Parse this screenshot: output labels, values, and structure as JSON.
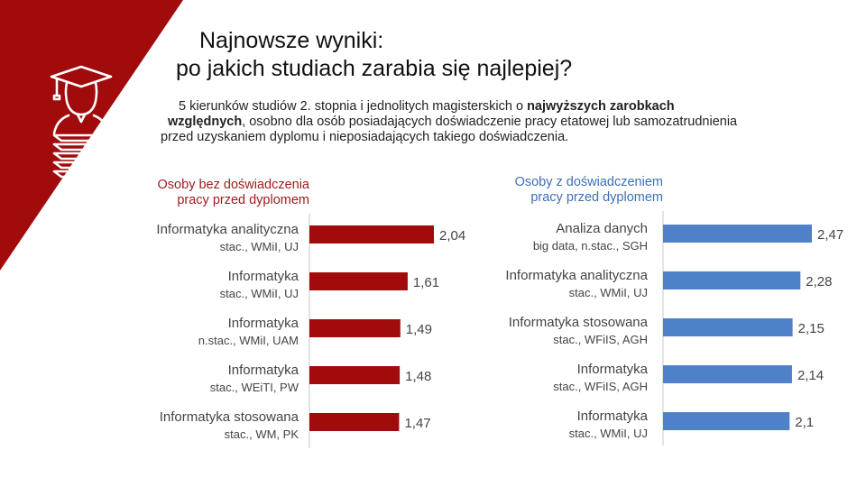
{
  "title": {
    "line1": "Najnowsze wyniki:",
    "line2": "po jakich studiach zarabia się najlepiej?"
  },
  "subtitle": {
    "line1_pre": "5 kierunków studiów 2. stopnia i jednolitych magisterskich o ",
    "line1_bold": "najwyższych zarobkach",
    "line2_bold": "względnych",
    "line2_post": ", osobno dla osób posiadających doświadczenie pracy etatowej lub samozatrudnienia",
    "line3": "przed uzyskaniem dyplomu i nieposiadających takiego doświadczenia."
  },
  "colors": {
    "brand_red": "#a10b0b",
    "bar_red": "#a10b0b",
    "bar_blue": "#4f81c8",
    "label_red": "#9e1a1a",
    "label_blue": "#3e6fb3"
  },
  "icons": [
    "graduate-icon"
  ],
  "chart_data": [
    {
      "type": "bar",
      "orientation": "horizontal",
      "title_line1": "Osoby bez doświadczenia",
      "title_line2": "pracy przed dyplomem",
      "categories": [
        "Informatyka analityczna",
        "Informatyka",
        "Informatyka",
        "Informatyka",
        "Informatyka stosowana"
      ],
      "details": [
        "stac., WMiI, UJ",
        "stac., WMiI, UJ",
        "n.stac., WMiI, UAM",
        "stac., WEiTI, PW",
        "stac., WM, PK"
      ],
      "values": [
        2.04,
        1.61,
        1.49,
        1.48,
        1.47
      ],
      "value_labels": [
        "2,04",
        "1,61",
        "1,49",
        "1,48",
        "1,47"
      ],
      "xlim": [
        0,
        2.6
      ]
    },
    {
      "type": "bar",
      "orientation": "horizontal",
      "title_line1": "Osoby z doświadczeniem",
      "title_line2": "pracy przed dyplomem",
      "categories": [
        "Analiza danych",
        "Informatyka analityczna",
        "Informatyka stosowana",
        "Informatyka",
        "Informatyka"
      ],
      "details": [
        "big data, n.stac., SGH",
        "stac., WMiI, UJ",
        "stac., WFiIS, AGH",
        "stac., WFiIS, AGH",
        "stac., WMiI, UJ"
      ],
      "values": [
        2.47,
        2.28,
        2.15,
        2.14,
        2.1
      ],
      "value_labels": [
        "2,47",
        "2,28",
        "2,15",
        "2,14",
        "2,1"
      ],
      "xlim": [
        0,
        2.6
      ]
    }
  ]
}
